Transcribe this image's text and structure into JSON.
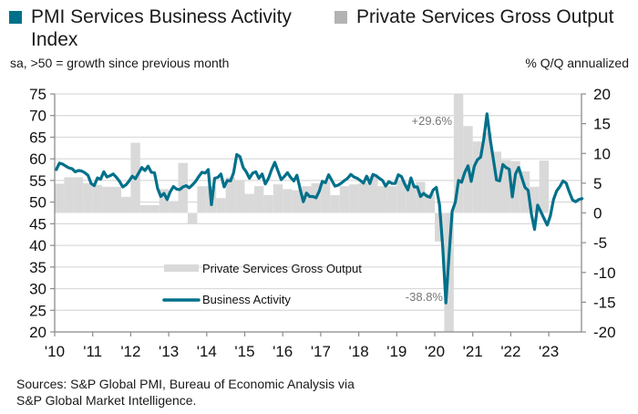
{
  "header": {
    "legend": [
      {
        "label": "PMI Services Business Activity Index",
        "color": "#00708a"
      },
      {
        "label": "Private Services Gross Output",
        "color": "#b3b3b3"
      }
    ],
    "left_subtitle": "sa, >50 = growth since previous month",
    "right_subtitle": "% Q/Q annualized"
  },
  "footer": {
    "source_line1": "Sources: S&P Global PMI, Bureau of Economic Analysis via",
    "source_line2": "S&P Global Market Intelligence."
  },
  "chart_data": {
    "type": "bar+line",
    "title": "",
    "x_tick_labels": [
      "'10",
      "'11",
      "'12",
      "'13",
      "'14",
      "'15",
      "'16",
      "'17",
      "'18",
      "'19",
      "'20",
      "'21",
      "'22",
      "'23"
    ],
    "x_range": [
      2010.0,
      2023.95
    ],
    "left_axis": {
      "label": "sa, >50 = growth since previous month",
      "range": [
        20,
        75
      ],
      "ticks": [
        75,
        70,
        65,
        60,
        55,
        50,
        45,
        40,
        35,
        30,
        25,
        20
      ]
    },
    "right_axis": {
      "label": "% Q/Q annualized",
      "range": [
        -20,
        20
      ],
      "ticks": [
        20,
        15,
        10,
        5,
        0,
        -5,
        -10,
        -15,
        -20
      ]
    },
    "grid": true,
    "legend_inside": {
      "bar_label": "Private Services Gross Output",
      "line_label": "Business Activity",
      "placement": "center-left"
    },
    "annotations": [
      {
        "text": "+29.6%",
        "x": 2020.5,
        "series": "bar"
      },
      {
        "text": "-38.8%",
        "x": 2020.25,
        "series": "bar"
      }
    ],
    "bar_series": {
      "name": "Private Services Gross Output",
      "axis": "right",
      "color": "#d9d9d9",
      "frequency": "quarterly",
      "start": 2010.0,
      "clip": [
        -20,
        20
      ],
      "values": [
        4.9,
        6.0,
        6.0,
        5.0,
        4.7,
        4.4,
        4.4,
        2.7,
        11.8,
        1.3,
        1.3,
        4.0,
        2.0,
        8.4,
        -1.8,
        4.5,
        4.5,
        2.5,
        6.0,
        5.5,
        3.2,
        4.5,
        3.0,
        4.8,
        4.0,
        3.8,
        4.5,
        5.0,
        5.3,
        3.0,
        4.5,
        4.8,
        5.0,
        6.2,
        4.5,
        4.5,
        5.5,
        4.8,
        5.2,
        3.2,
        -4.8,
        -38.8,
        29.6,
        14.6,
        12.0,
        13.5,
        10.3,
        8.9,
        8.7,
        7.0,
        4.4,
        8.8,
        0.0,
        0.0
      ]
    },
    "line_series": {
      "name": "PMI Services Business Activity Index",
      "axis": "left",
      "color": "#00708a",
      "frequency": "monthly",
      "start": 2010.0,
      "values": [
        57.5,
        59.0,
        58.8,
        58.3,
        57.9,
        57.7,
        57.0,
        57.3,
        57.2,
        56.8,
        56.2,
        54.3,
        53.8,
        55.6,
        55.3,
        57.0,
        55.8,
        56.1,
        56.5,
        55.7,
        54.8,
        53.5,
        54.0,
        54.9,
        56.0,
        55.4,
        56.7,
        58.0,
        57.3,
        58.3,
        56.9,
        56.8,
        53.2,
        51.3,
        52.0,
        50.6,
        52.4,
        53.6,
        53.0,
        52.9,
        53.5,
        53.8,
        53.3,
        54.0,
        54.8,
        55.9,
        56.9,
        56.7,
        57.5,
        49.4,
        55.5,
        55.7,
        56.5,
        53.5,
        55.0,
        54.9,
        56.8,
        61.0,
        60.5,
        58.0,
        57.0,
        55.5,
        56.7,
        57.0,
        55.5,
        56.5,
        54.2,
        55.5,
        57.5,
        59.2,
        57.2,
        55.2,
        55.9,
        56.8,
        55.7,
        54.9,
        56.2,
        53.0,
        50.1,
        52.1,
        51.3,
        51.3,
        51.0,
        52.5,
        54.8,
        54.5,
        56.3,
        55.0,
        53.7,
        53.9,
        54.4,
        55.0,
        55.5,
        56.4,
        55.8,
        55.5,
        55.0,
        54.4,
        56.0,
        54.3,
        56.4,
        56.1,
        55.5,
        55.0,
        53.7,
        54.7,
        54.3,
        54.3,
        56.3,
        55.9,
        54.2,
        52.8,
        55.6,
        53.5,
        53.5,
        51.3,
        52.0,
        51.4,
        51.1,
        52.8,
        53.4,
        49.4,
        39.8,
        26.7,
        37.5,
        47.9,
        50.0,
        55.0,
        54.6,
        56.9,
        58.4,
        54.8,
        58.3,
        59.8,
        60.4,
        64.7,
        70.4,
        64.6,
        59.9,
        55.1,
        54.9,
        58.7,
        58.0,
        57.6,
        51.2,
        56.5,
        58.0,
        55.6,
        53.4,
        52.7,
        47.3,
        43.7,
        49.3,
        47.8,
        46.2,
        44.7,
        46.8,
        50.6,
        52.6,
        53.6,
        54.9,
        54.4,
        52.3,
        50.5,
        50.1,
        50.6,
        50.8
      ]
    }
  }
}
